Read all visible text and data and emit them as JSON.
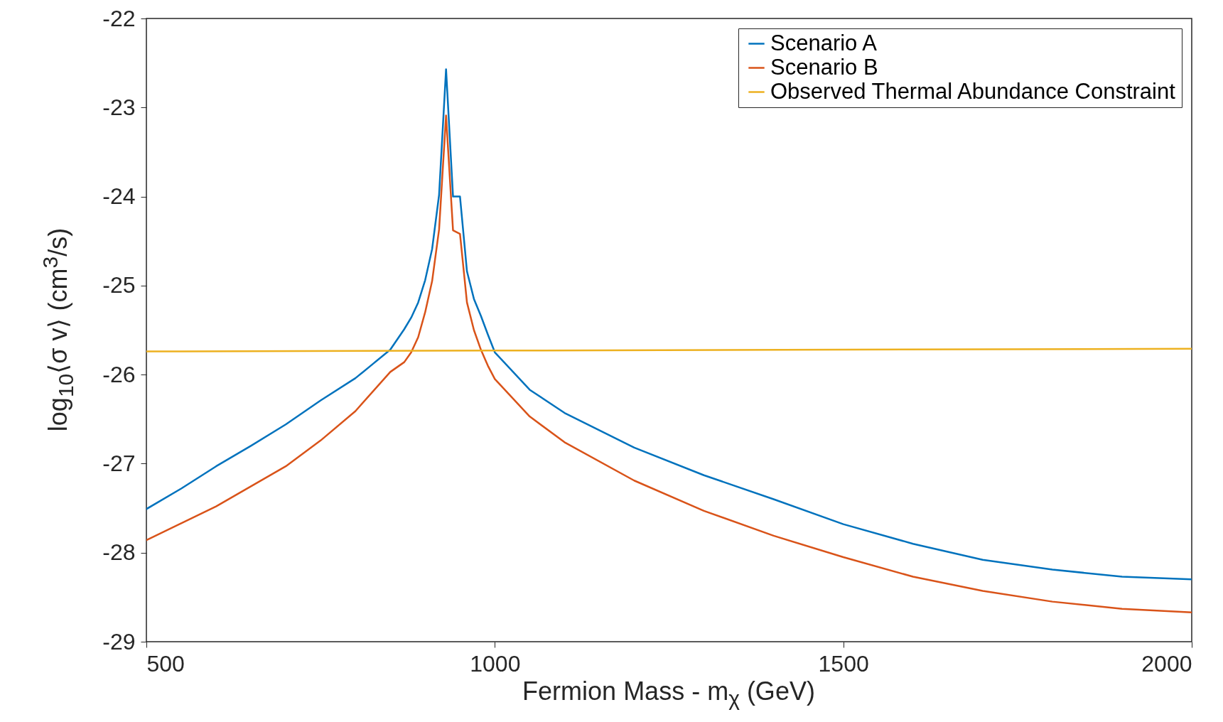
{
  "chart_data": {
    "type": "line",
    "xlabel": "Fermion Mass - m$_{χ}$ (GeV)",
    "ylabel": "log$_{10}$⟨σ v⟩ (cm$^{3}$/s)",
    "xlim": [
      500,
      2000
    ],
    "xticks": [
      500,
      1000,
      1500,
      2000
    ],
    "ylim": [
      -29,
      -22
    ],
    "yticks": [
      -29,
      -28,
      -27,
      -26,
      -25,
      -24,
      -23,
      -22
    ],
    "grid": false,
    "legend": "top right",
    "line_style": "solid",
    "marker": "none",
    "series": [
      {
        "name": "Scenario A",
        "color": "#0072bd",
        "x": [
          500,
          550,
          600,
          650,
          700,
          750,
          800,
          825,
          850,
          870,
          880,
          890,
          900,
          910,
          920,
          930,
          940,
          950,
          960,
          970,
          980,
          990,
          1000,
          1050,
          1100,
          1200,
          1300,
          1400,
          1500,
          1600,
          1700,
          1800,
          1900,
          2000
        ],
        "values": [
          -27.51,
          -27.28,
          -27.03,
          -26.8,
          -26.56,
          -26.29,
          -26.04,
          -25.88,
          -25.72,
          -25.49,
          -25.36,
          -25.19,
          -24.94,
          -24.59,
          -23.98,
          -22.57,
          -24.0,
          -24.0,
          -24.84,
          -25.15,
          -25.34,
          -25.55,
          -25.75,
          -26.17,
          -26.43,
          -26.82,
          -27.13,
          -27.4,
          -27.68,
          -27.9,
          -28.08,
          -28.19,
          -28.27,
          -28.3
        ]
      },
      {
        "name": "Scenario B",
        "color": "#d95319",
        "x": [
          500,
          600,
          700,
          750,
          800,
          850,
          870,
          880,
          890,
          900,
          910,
          920,
          930,
          940,
          950,
          960,
          970,
          980,
          990,
          1000,
          1050,
          1100,
          1200,
          1300,
          1400,
          1500,
          1600,
          1700,
          1800,
          1900,
          2000
        ],
        "values": [
          -27.86,
          -27.48,
          -27.03,
          -26.74,
          -26.41,
          -25.97,
          -25.86,
          -25.75,
          -25.58,
          -25.3,
          -24.95,
          -24.37,
          -23.09,
          -24.38,
          -24.42,
          -25.19,
          -25.5,
          -25.72,
          -25.9,
          -26.05,
          -26.47,
          -26.76,
          -27.19,
          -27.53,
          -27.81,
          -28.05,
          -28.27,
          -28.43,
          -28.55,
          -28.63,
          -28.67
        ]
      },
      {
        "name": "Observed Thermal Abundance Constraint",
        "color": "#edb120",
        "x": [
          500,
          1000,
          1500,
          2000
        ],
        "values": [
          -25.74,
          -25.73,
          -25.72,
          -25.71
        ]
      }
    ]
  }
}
